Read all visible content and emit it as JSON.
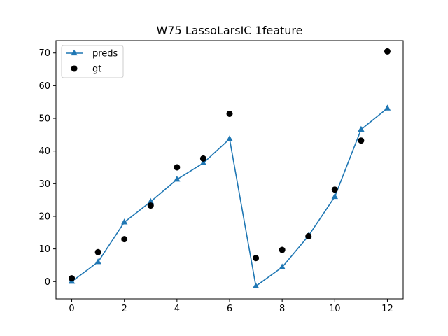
{
  "chart_data": {
    "type": "line",
    "title": "W75 LassoLarsIC 1feature",
    "xlabel": "",
    "ylabel": "",
    "x": [
      0,
      1,
      2,
      3,
      4,
      5,
      6,
      7,
      8,
      9,
      10,
      11,
      12
    ],
    "xlim": [
      -0.6,
      12.6
    ],
    "ylim": [
      -5.3,
      73.8
    ],
    "xticks": [
      0,
      2,
      4,
      6,
      8,
      10,
      12
    ],
    "yticks": [
      0,
      10,
      20,
      30,
      40,
      50,
      60,
      70
    ],
    "grid": false,
    "legend_position": "upper-left",
    "series": [
      {
        "name": "preds",
        "kind": "line",
        "marker": "triangle",
        "color": "#1f77b4",
        "values": [
          0.0,
          6.0,
          18.2,
          24.5,
          31.3,
          36.3,
          43.7,
          -1.4,
          4.4,
          14.0,
          26.0,
          46.6,
          53.1
        ]
      },
      {
        "name": "gt",
        "kind": "scatter",
        "marker": "circle",
        "color": "#000000",
        "values": [
          1.0,
          9.0,
          13.0,
          23.3,
          35.0,
          37.7,
          51.4,
          7.2,
          9.7,
          13.9,
          28.2,
          43.2,
          70.5
        ]
      }
    ]
  }
}
